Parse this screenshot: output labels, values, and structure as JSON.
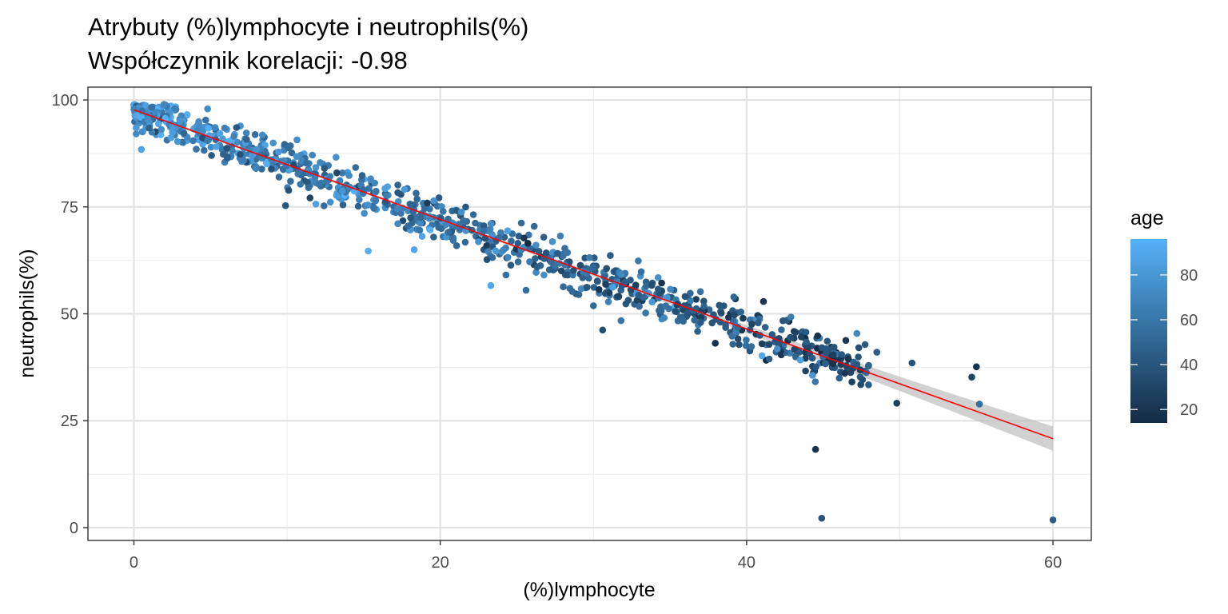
{
  "chart_data": {
    "type": "scatter",
    "title": "Atrybuty (%)lymphocyte i neutrophils(%)",
    "subtitle": "Współczynnik korelacji: -0.98",
    "xlabel": "(%)lymphocyte",
    "ylabel": "neutrophils(%)",
    "xlim": [
      -3,
      62.5
    ],
    "ylim": [
      -3,
      103
    ],
    "x_ticks": [
      "0",
      "20",
      "40",
      "60"
    ],
    "y_ticks": [
      "0",
      "25",
      "50",
      "75",
      "100"
    ],
    "grid": true,
    "legend_position": "right",
    "color_scale": {
      "title": "age",
      "range": [
        14,
        96
      ],
      "ticks": [
        "20",
        "40",
        "60",
        "80"
      ],
      "low_color": "#132B43",
      "high_color": "#56B1F7"
    },
    "trend_line": {
      "x": [
        0,
        60
      ],
      "y": [
        97.7,
        20.8
      ],
      "color": "#ff0000",
      "ci_color": "#bdbdbd"
    },
    "outliers": [
      {
        "x": 44.5,
        "y": 18.3,
        "age": 20
      },
      {
        "x": 44.9,
        "y": 2.2,
        "age": 40
      },
      {
        "x": 60.0,
        "y": 1.8,
        "age": 45
      },
      {
        "x": 49.8,
        "y": 29.1,
        "age": 25
      },
      {
        "x": 50.8,
        "y": 38.5,
        "age": 38
      },
      {
        "x": 55.0,
        "y": 37.6,
        "age": 18
      },
      {
        "x": 54.7,
        "y": 35.2,
        "age": 30
      },
      {
        "x": 55.2,
        "y": 28.9,
        "age": 55
      },
      {
        "x": 44.3,
        "y": 35.6,
        "age": 80
      },
      {
        "x": 47.2,
        "y": 45.4,
        "age": 70
      },
      {
        "x": 48.5,
        "y": 41.0,
        "age": 45
      },
      {
        "x": 41.0,
        "y": 40.2,
        "age": 90
      },
      {
        "x": 43.5,
        "y": 39.2,
        "age": 85
      },
      {
        "x": 42.0,
        "y": 41.8,
        "age": 75
      },
      {
        "x": 30.6,
        "y": 46.2,
        "age": 35
      },
      {
        "x": 15.3,
        "y": 64.7,
        "age": 95
      },
      {
        "x": 23.3,
        "y": 56.6,
        "age": 90
      },
      {
        "x": 18.3,
        "y": 65.0,
        "age": 90
      },
      {
        "x": 9.9,
        "y": 75.3,
        "age": 40
      },
      {
        "x": 31.8,
        "y": 48.4,
        "age": 60
      },
      {
        "x": 25.6,
        "y": 55.5,
        "age": 55
      }
    ],
    "cloud": {
      "n": 980,
      "x_range": [
        0,
        48
      ],
      "y_at_x0": 97.7,
      "y_slope": -1.28,
      "spread": 2.6,
      "seed": 12345
    }
  }
}
